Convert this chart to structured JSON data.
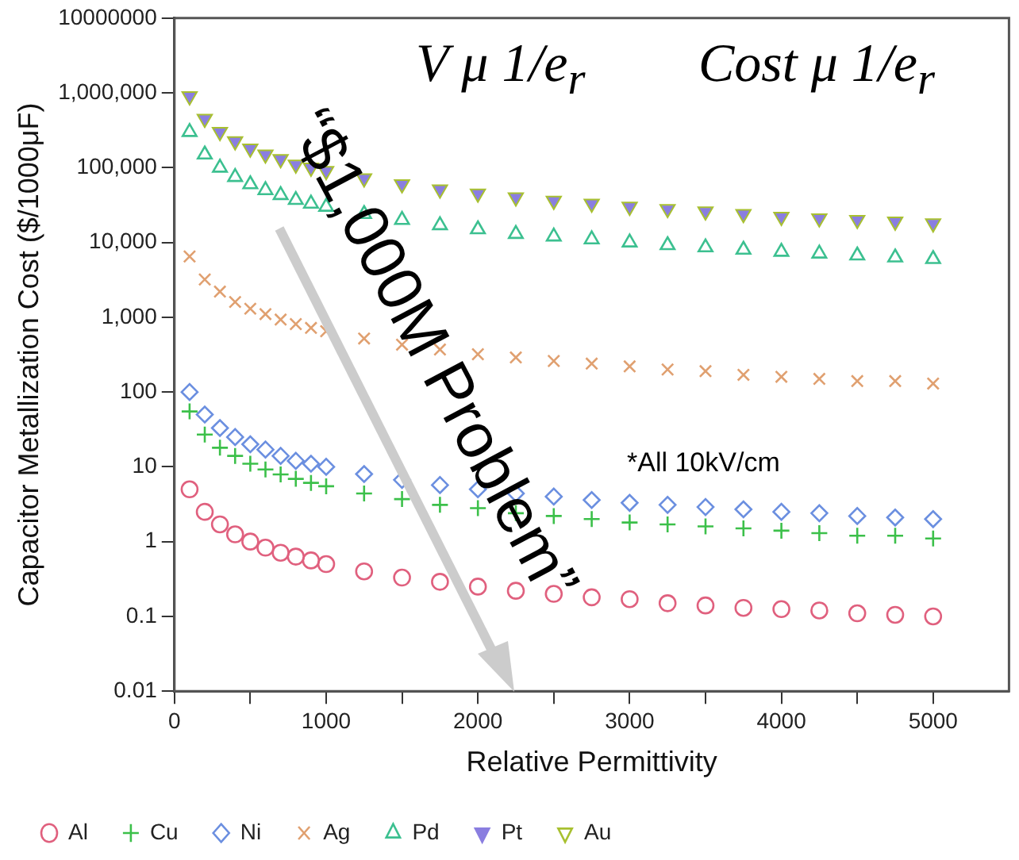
{
  "chart_data": {
    "type": "scatter",
    "xlabel": "Relative Permittivity",
    "ylabel": "Capacitor Metallization Cost ($/1000μF)",
    "annotations": [
      "V μ 1/e$_{r}$",
      "Cost μ 1/e$_{r}$",
      "“$1,000M Problem”",
      "*All 10kV/cm"
    ],
    "x": [
      100,
      200,
      300,
      400,
      500,
      600,
      700,
      800,
      900,
      1000,
      1250,
      1500,
      1750,
      2000,
      2250,
      2500,
      2750,
      3000,
      3250,
      3500,
      3750,
      4000,
      4250,
      4500,
      4750,
      5000
    ],
    "series": [
      {
        "name": "Al",
        "color": "#e0607e",
        "marker": "circle",
        "values": [
          5,
          2.5,
          1.7,
          1.25,
          1,
          0.83,
          0.71,
          0.63,
          0.56,
          0.5,
          0.4,
          0.33,
          0.29,
          0.25,
          0.22,
          0.2,
          0.18,
          0.17,
          0.15,
          0.14,
          0.13,
          0.125,
          0.12,
          0.11,
          0.105,
          0.1
        ]
      },
      {
        "name": "Cu",
        "color": "#3cc04a",
        "marker": "cross",
        "values": [
          55,
          27,
          18,
          14,
          11,
          9.2,
          7.9,
          6.9,
          6.1,
          5.5,
          4.4,
          3.7,
          3.1,
          2.8,
          2.4,
          2.2,
          2,
          1.8,
          1.7,
          1.6,
          1.5,
          1.4,
          1.3,
          1.2,
          1.2,
          1.1
        ]
      },
      {
        "name": "Ni",
        "color": "#6b8fe0",
        "marker": "diamond",
        "values": [
          100,
          50,
          33,
          25,
          20,
          17,
          14,
          12,
          11,
          10,
          8,
          6.7,
          5.7,
          5,
          4.4,
          4,
          3.6,
          3.3,
          3.1,
          2.9,
          2.7,
          2.5,
          2.4,
          2.2,
          2.1,
          2
        ]
      },
      {
        "name": "Ag",
        "color": "#e0a070",
        "marker": "x",
        "values": [
          6500,
          3200,
          2200,
          1600,
          1300,
          1100,
          930,
          810,
          720,
          650,
          520,
          430,
          370,
          320,
          290,
          260,
          240,
          220,
          200,
          190,
          170,
          160,
          150,
          140,
          140,
          130
        ]
      },
      {
        "name": "Pd",
        "color": "#3cc090",
        "marker": "triangle",
        "values": [
          300000,
          150000,
          100000,
          75000,
          60000,
          50000,
          43000,
          37000,
          33000,
          30000,
          24000,
          20000,
          17000,
          15000,
          13000,
          12000,
          11000,
          10000,
          9200,
          8600,
          8000,
          7500,
          7100,
          6700,
          6300,
          6000
        ]
      },
      {
        "name": "Pt",
        "color": "#8a7ee0",
        "marker": "triangle-down",
        "values": [
          900000,
          450000,
          300000,
          225000,
          180000,
          150000,
          130000,
          110000,
          100000,
          90000,
          72000,
          60000,
          51000,
          45000,
          40000,
          36000,
          33000,
          30000,
          28000,
          26000,
          24000,
          22000,
          21000,
          20000,
          19000,
          18000
        ]
      },
      {
        "name": "Au",
        "color": "#a8c030",
        "marker": "triangle-down",
        "values": [
          900000,
          450000,
          300000,
          225000,
          180000,
          150000,
          130000,
          110000,
          100000,
          90000,
          72000,
          60000,
          51000,
          45000,
          40000,
          36000,
          33000,
          30000,
          28000,
          26000,
          24000,
          22000,
          21000,
          20000,
          19000,
          18000
        ]
      }
    ],
    "log": "y",
    "xlim": [
      0,
      5500
    ],
    "xticks": [
      0,
      {
        "value": 500,
        "label": null
      },
      1000,
      {
        "value": 1500,
        "label": null
      },
      2000,
      {
        "value": 2500,
        "label": null
      },
      3000,
      {
        "value": 3500,
        "label": null
      },
      4000,
      {
        "value": 4500,
        "label": null
      },
      5000
    ],
    "ylim": [
      0.01,
      10000000
    ],
    "yticks": [
      0.01,
      0.1,
      1,
      10,
      100,
      {
        "value": 1000,
        "label": "1,000"
      },
      {
        "value": 10000,
        "label": "10,000"
      },
      {
        "value": 100000,
        "label": "100,000"
      },
      {
        "value": 1000000,
        "label": "1,000,000"
      },
      10000000
    ],
    "legend": "bottom",
    "grid": false
  }
}
